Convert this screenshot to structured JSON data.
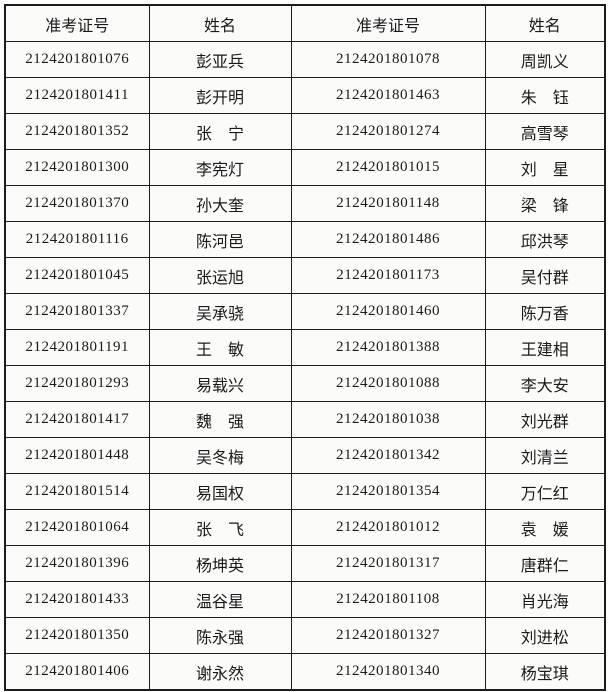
{
  "table": {
    "headers": [
      "准考证号",
      "姓名",
      "准考证号",
      "姓名"
    ],
    "rows": [
      [
        "2124201801076",
        "彭亚兵",
        "2124201801078",
        "周凯义"
      ],
      [
        "2124201801411",
        "彭开明",
        "2124201801463",
        "朱　钰"
      ],
      [
        "2124201801352",
        "张　宁",
        "2124201801274",
        "高雪琴"
      ],
      [
        "2124201801300",
        "李宪灯",
        "2124201801015",
        "刘　星"
      ],
      [
        "2124201801370",
        "孙大奎",
        "2124201801148",
        "梁　锋"
      ],
      [
        "2124201801116",
        "陈河邑",
        "2124201801486",
        "邱洪琴"
      ],
      [
        "2124201801045",
        "张运旭",
        "2124201801173",
        "吴付群"
      ],
      [
        "2124201801337",
        "吴承骁",
        "2124201801460",
        "陈万香"
      ],
      [
        "2124201801191",
        "王　敏",
        "2124201801388",
        "王建相"
      ],
      [
        "2124201801293",
        "易载兴",
        "2124201801088",
        "李大安"
      ],
      [
        "2124201801417",
        "魏　强",
        "2124201801038",
        "刘光群"
      ],
      [
        "2124201801448",
        "吴冬梅",
        "2124201801342",
        "刘清兰"
      ],
      [
        "2124201801514",
        "易国权",
        "2124201801354",
        "万仁红"
      ],
      [
        "2124201801064",
        "张　飞",
        "2124201801012",
        "袁　媛"
      ],
      [
        "2124201801396",
        "杨坤英",
        "2124201801317",
        "唐群仁"
      ],
      [
        "2124201801433",
        "温谷星",
        "2124201801108",
        "肖光海"
      ],
      [
        "2124201801350",
        "陈永强",
        "2124201801327",
        "刘进松"
      ],
      [
        "2124201801406",
        "谢永然",
        "2124201801340",
        "杨宝琪"
      ]
    ],
    "colors": {
      "border": "#1c1c1c",
      "cell_background": "#fbfbfa",
      "text": "#1a1a1a"
    }
  }
}
